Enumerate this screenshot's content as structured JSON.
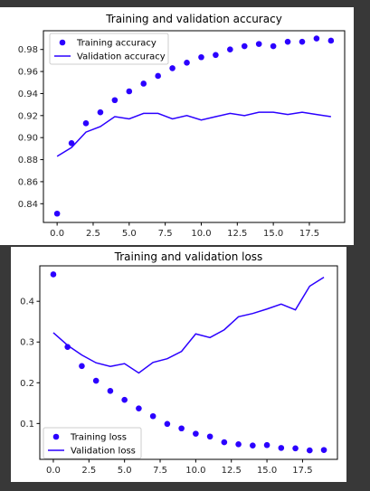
{
  "colors": {
    "series": "#2b00ff",
    "background": "#383838"
  },
  "chart_data": [
    {
      "type": "line",
      "title": "Training and validation accuracy",
      "xlabel": "",
      "ylabel": "",
      "xlim": [
        -0.95,
        19.95
      ],
      "ylim": [
        0.823,
        0.997
      ],
      "xticks": [
        0.0,
        2.5,
        5.0,
        7.5,
        10.0,
        12.5,
        15.0,
        17.5
      ],
      "xtick_labels": [
        "0.0",
        "2.5",
        "5.0",
        "7.5",
        "10.0",
        "12.5",
        "15.0",
        "17.5"
      ],
      "yticks": [
        0.84,
        0.86,
        0.88,
        0.9,
        0.92,
        0.94,
        0.96,
        0.98
      ],
      "ytick_labels": [
        "0.84",
        "0.86",
        "0.88",
        "0.90",
        "0.92",
        "0.94",
        "0.96",
        "0.98"
      ],
      "legend_position": "top-left",
      "series": [
        {
          "name": "Training accuracy",
          "style": "markers",
          "x": [
            0,
            1,
            2,
            3,
            4,
            5,
            6,
            7,
            8,
            9,
            10,
            11,
            12,
            13,
            14,
            15,
            16,
            17,
            18,
            19
          ],
          "values": [
            0.831,
            0.895,
            0.913,
            0.923,
            0.934,
            0.942,
            0.949,
            0.956,
            0.963,
            0.968,
            0.973,
            0.975,
            0.98,
            0.983,
            0.985,
            0.983,
            0.987,
            0.987,
            0.99,
            0.988
          ]
        },
        {
          "name": "Validation accuracy",
          "style": "line",
          "x": [
            0,
            1,
            2,
            3,
            4,
            5,
            6,
            7,
            8,
            9,
            10,
            11,
            12,
            13,
            14,
            15,
            16,
            17,
            18,
            19
          ],
          "values": [
            0.883,
            0.891,
            0.905,
            0.91,
            0.919,
            0.917,
            0.922,
            0.922,
            0.917,
            0.92,
            0.916,
            0.919,
            0.922,
            0.92,
            0.923,
            0.923,
            0.921,
            0.923,
            0.921,
            0.919
          ]
        }
      ]
    },
    {
      "type": "line",
      "title": "Training and validation loss",
      "xlabel": "",
      "ylabel": "",
      "xlim": [
        -0.95,
        19.95
      ],
      "ylim": [
        0.012,
        0.487
      ],
      "xticks": [
        0.0,
        2.5,
        5.0,
        7.5,
        10.0,
        12.5,
        15.0,
        17.5
      ],
      "xtick_labels": [
        "0.0",
        "2.5",
        "5.0",
        "7.5",
        "10.0",
        "12.5",
        "15.0",
        "17.5"
      ],
      "yticks": [
        0.1,
        0.2,
        0.3,
        0.4
      ],
      "ytick_labels": [
        "0.1",
        "0.2",
        "0.3",
        "0.4"
      ],
      "legend_position": "bottom-left",
      "series": [
        {
          "name": "Training loss",
          "style": "markers",
          "x": [
            0,
            1,
            2,
            3,
            4,
            5,
            6,
            7,
            8,
            9,
            10,
            11,
            12,
            13,
            14,
            15,
            16,
            17,
            18,
            19
          ],
          "values": [
            0.466,
            0.288,
            0.241,
            0.205,
            0.18,
            0.158,
            0.137,
            0.118,
            0.099,
            0.088,
            0.075,
            0.068,
            0.054,
            0.049,
            0.046,
            0.047,
            0.04,
            0.039,
            0.034,
            0.035
          ]
        },
        {
          "name": "Validation loss",
          "style": "line",
          "x": [
            0,
            1,
            2,
            3,
            4,
            5,
            6,
            7,
            8,
            9,
            10,
            11,
            12,
            13,
            14,
            15,
            16,
            17,
            18,
            19
          ],
          "values": [
            0.323,
            0.292,
            0.268,
            0.249,
            0.24,
            0.247,
            0.224,
            0.25,
            0.259,
            0.277,
            0.32,
            0.311,
            0.33,
            0.362,
            0.37,
            0.381,
            0.393,
            0.379,
            0.437,
            0.459
          ]
        }
      ]
    }
  ]
}
